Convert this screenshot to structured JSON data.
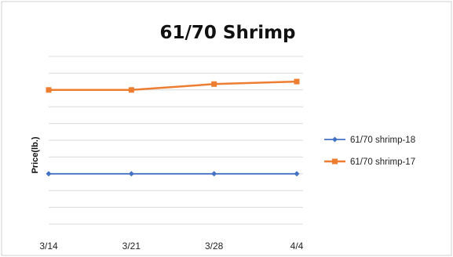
{
  "chart_data": {
    "type": "line",
    "title": "61/70 Shrimp",
    "ylabel": "Price(lb.)",
    "xlabel": "",
    "categories": [
      "3/14",
      "3/21",
      "3/28",
      "4/4"
    ],
    "ylim": [
      0,
      10
    ],
    "grid": true,
    "legend_position": "right",
    "series": [
      {
        "name": "61/70 shrimp-18",
        "values": [
          3.0,
          3.0,
          3.0,
          3.0
        ],
        "color": "#4472c4",
        "marker": "diamond"
      },
      {
        "name": "61/70 shrimp-17",
        "values": [
          8.0,
          8.0,
          8.35,
          8.5
        ],
        "color": "#ed7d31",
        "marker": "square"
      }
    ]
  }
}
